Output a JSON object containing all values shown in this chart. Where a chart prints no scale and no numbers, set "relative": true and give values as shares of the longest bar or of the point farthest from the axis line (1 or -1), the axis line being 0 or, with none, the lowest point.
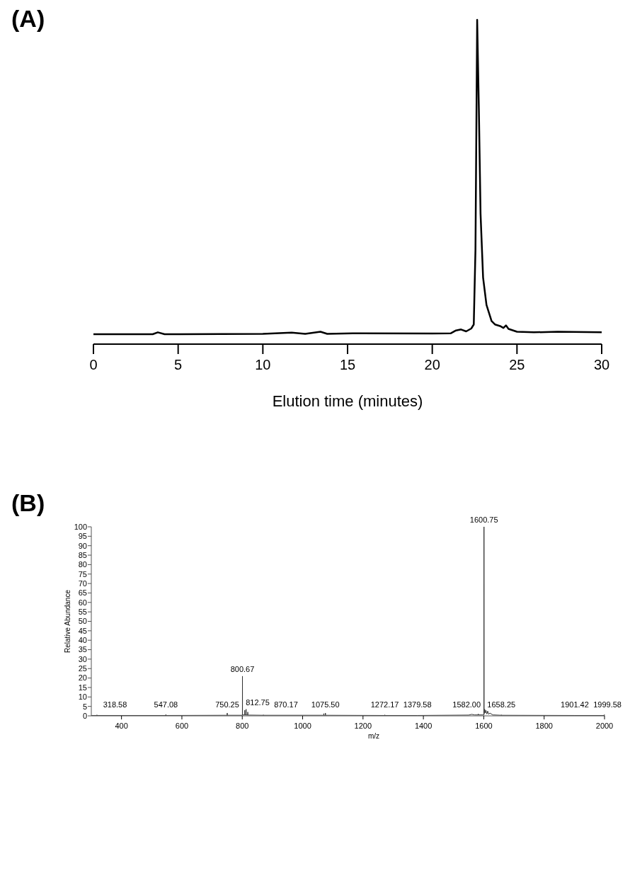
{
  "chart_data": [
    {
      "type": "line",
      "title": "(A)",
      "xlabel": "Elution time (minutes)",
      "relative": true,
      "xlim": [
        0,
        30
      ],
      "xticks": [
        0,
        5,
        10,
        15,
        20,
        25,
        30
      ],
      "tick_labels": "x",
      "series": [
        {
          "color": "#000000",
          "x": [
            0,
            3.5,
            3.8,
            4.2,
            10,
            11.7,
            12.5,
            13.4,
            13.8,
            15.3,
            20,
            21.1,
            21.4,
            21.7,
            22.0,
            22.3,
            22.45,
            22.55,
            22.65,
            22.75,
            22.85,
            23.0,
            23.2,
            23.5,
            23.7,
            24.0,
            24.2,
            24.35,
            24.5,
            25.0,
            26,
            27.4,
            30
          ],
          "values": [
            0,
            0,
            0.006,
            0,
            0.001,
            0.005,
            0.001,
            0.008,
            0.001,
            0.003,
            0.002,
            0.003,
            0.012,
            0.015,
            0.009,
            0.018,
            0.031,
            0.27,
            1,
            0.718,
            0.383,
            0.18,
            0.093,
            0.042,
            0.031,
            0.026,
            0.02,
            0.028,
            0.017,
            0.008,
            0.006,
            0.008,
            0.006
          ]
        }
      ]
    },
    {
      "type": "line",
      "title": "(B)",
      "xlabel": "m/z",
      "ylabel": "Relative Abundance",
      "xlim": [
        300,
        2000
      ],
      "xticks": [
        400,
        600,
        800,
        1000,
        1200,
        1400,
        1600,
        1800,
        2000
      ],
      "ylim": [
        0,
        100
      ],
      "yticks": [
        0,
        5,
        10,
        15,
        20,
        25,
        30,
        35,
        40,
        45,
        50,
        55,
        60,
        65,
        70,
        75,
        80,
        85,
        90,
        95,
        100
      ],
      "series": [
        {
          "color": "#333333",
          "x": [
            300,
            318.5,
            318.58,
            318.7,
            547,
            547.08,
            547.2,
            750.1,
            750.25,
            750.4,
            800.5,
            800.67,
            800.9,
            808,
            808.3,
            808.6,
            812.6,
            812.75,
            812.9,
            818,
            818.3,
            818.6,
            870.1,
            870.17,
            870.3,
            1070,
            1070.2,
            1070.4,
            1075.4,
            1075.5,
            1075.6,
            1272.1,
            1272.17,
            1272.3,
            1379.5,
            1379.58,
            1379.7,
            1550,
            1560,
            1570,
            1581.9,
            1582,
            1582.1,
            1600.6,
            1600.75,
            1601,
            1603,
            1605,
            1607,
            1610,
            1613,
            1616,
            1620,
            1630,
            1658.2,
            1658.25,
            1658.3,
            1901.3,
            1901.42,
            1901.5,
            1999.5,
            1999.58,
            2000
          ],
          "values": [
            0.2,
            0.2,
            0.5,
            0.2,
            0.2,
            0.7,
            0.2,
            0.3,
            1.5,
            0.3,
            0.3,
            21,
            0.5,
            0.5,
            3,
            0.5,
            0.5,
            3.5,
            0.5,
            0.4,
            2,
            0.4,
            0.3,
            0.5,
            0.3,
            0.3,
            1.2,
            0.3,
            0.3,
            1.5,
            0.3,
            0.2,
            0.5,
            0.2,
            0.2,
            0.3,
            0.2,
            0.4,
            0.8,
            0.5,
            0.5,
            1,
            0.5,
            0.5,
            100,
            1,
            3.5,
            1.5,
            3,
            1,
            2.5,
            0.8,
            1.5,
            0.5,
            0.3,
            0.5,
            0.3,
            0.2,
            0.3,
            0.2,
            0.2,
            0.6,
            0.2
          ]
        }
      ],
      "annotations": [
        {
          "text": "318.58",
          "x": 318.58,
          "y": 0.5
        },
        {
          "text": "547.08",
          "x": 547.08,
          "y": 0.7
        },
        {
          "text": "750.25",
          "x": 750.25,
          "y": 1.5
        },
        {
          "text": "800.67",
          "x": 800.67,
          "y": 21
        },
        {
          "text": "812.75",
          "x": 812.75,
          "y": 3.5
        },
        {
          "text": "870.17",
          "x": 870.17,
          "y": 0.5
        },
        {
          "text": "1075.50",
          "x": 1075.5,
          "y": 1.5
        },
        {
          "text": "1272.17",
          "x": 1272.17,
          "y": 0.5
        },
        {
          "text": "1379.58",
          "x": 1379.58,
          "y": 0.3
        },
        {
          "text": "1582.00",
          "x": 1582,
          "y": 1
        },
        {
          "text": "1600.75",
          "x": 1600.75,
          "y": 100
        },
        {
          "text": "1658.25",
          "x": 1658.25,
          "y": 0.5
        },
        {
          "text": "1901.42",
          "x": 1901.42,
          "y": 0.3
        },
        {
          "text": "1999.58",
          "x": 1999.58,
          "y": 0.6
        }
      ]
    }
  ]
}
